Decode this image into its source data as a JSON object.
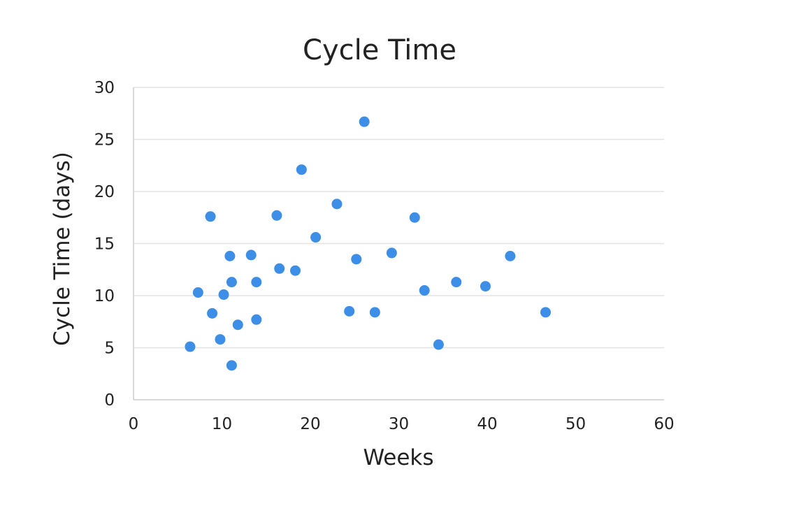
{
  "chart_data": {
    "type": "scatter",
    "title": "Cycle Time",
    "xlabel": "Weeks",
    "ylabel": "Cycle Time (days)",
    "xlim": [
      0,
      60
    ],
    "ylim": [
      0,
      30
    ],
    "xticks": [
      0,
      10,
      20,
      30,
      40,
      50,
      60
    ],
    "yticks": [
      0,
      5,
      10,
      15,
      20,
      25,
      30
    ],
    "grid": "horizontal",
    "legend": "none",
    "colors": {
      "point": "#3d8ee6",
      "grid": "#e3e3e3",
      "axis": "#cccccc"
    },
    "points": [
      {
        "x": 6.4,
        "y": 5.1
      },
      {
        "x": 7.3,
        "y": 10.3
      },
      {
        "x": 8.7,
        "y": 17.6
      },
      {
        "x": 8.9,
        "y": 8.3
      },
      {
        "x": 9.8,
        "y": 5.8
      },
      {
        "x": 10.2,
        "y": 10.1
      },
      {
        "x": 10.9,
        "y": 13.8
      },
      {
        "x": 11.1,
        "y": 11.3
      },
      {
        "x": 11.1,
        "y": 3.3
      },
      {
        "x": 11.8,
        "y": 7.2
      },
      {
        "x": 13.3,
        "y": 13.9
      },
      {
        "x": 13.9,
        "y": 11.3
      },
      {
        "x": 13.9,
        "y": 7.7
      },
      {
        "x": 16.2,
        "y": 17.7
      },
      {
        "x": 16.5,
        "y": 12.6
      },
      {
        "x": 18.3,
        "y": 12.4
      },
      {
        "x": 19.0,
        "y": 22.1
      },
      {
        "x": 20.6,
        "y": 15.6
      },
      {
        "x": 23.0,
        "y": 18.8
      },
      {
        "x": 24.4,
        "y": 8.5
      },
      {
        "x": 25.2,
        "y": 13.5
      },
      {
        "x": 26.1,
        "y": 26.7
      },
      {
        "x": 27.3,
        "y": 8.4
      },
      {
        "x": 29.2,
        "y": 14.1
      },
      {
        "x": 31.8,
        "y": 17.5
      },
      {
        "x": 32.9,
        "y": 10.5
      },
      {
        "x": 34.5,
        "y": 5.3
      },
      {
        "x": 36.5,
        "y": 11.3
      },
      {
        "x": 39.8,
        "y": 10.9
      },
      {
        "x": 42.6,
        "y": 13.8
      },
      {
        "x": 46.6,
        "y": 8.4
      }
    ]
  }
}
